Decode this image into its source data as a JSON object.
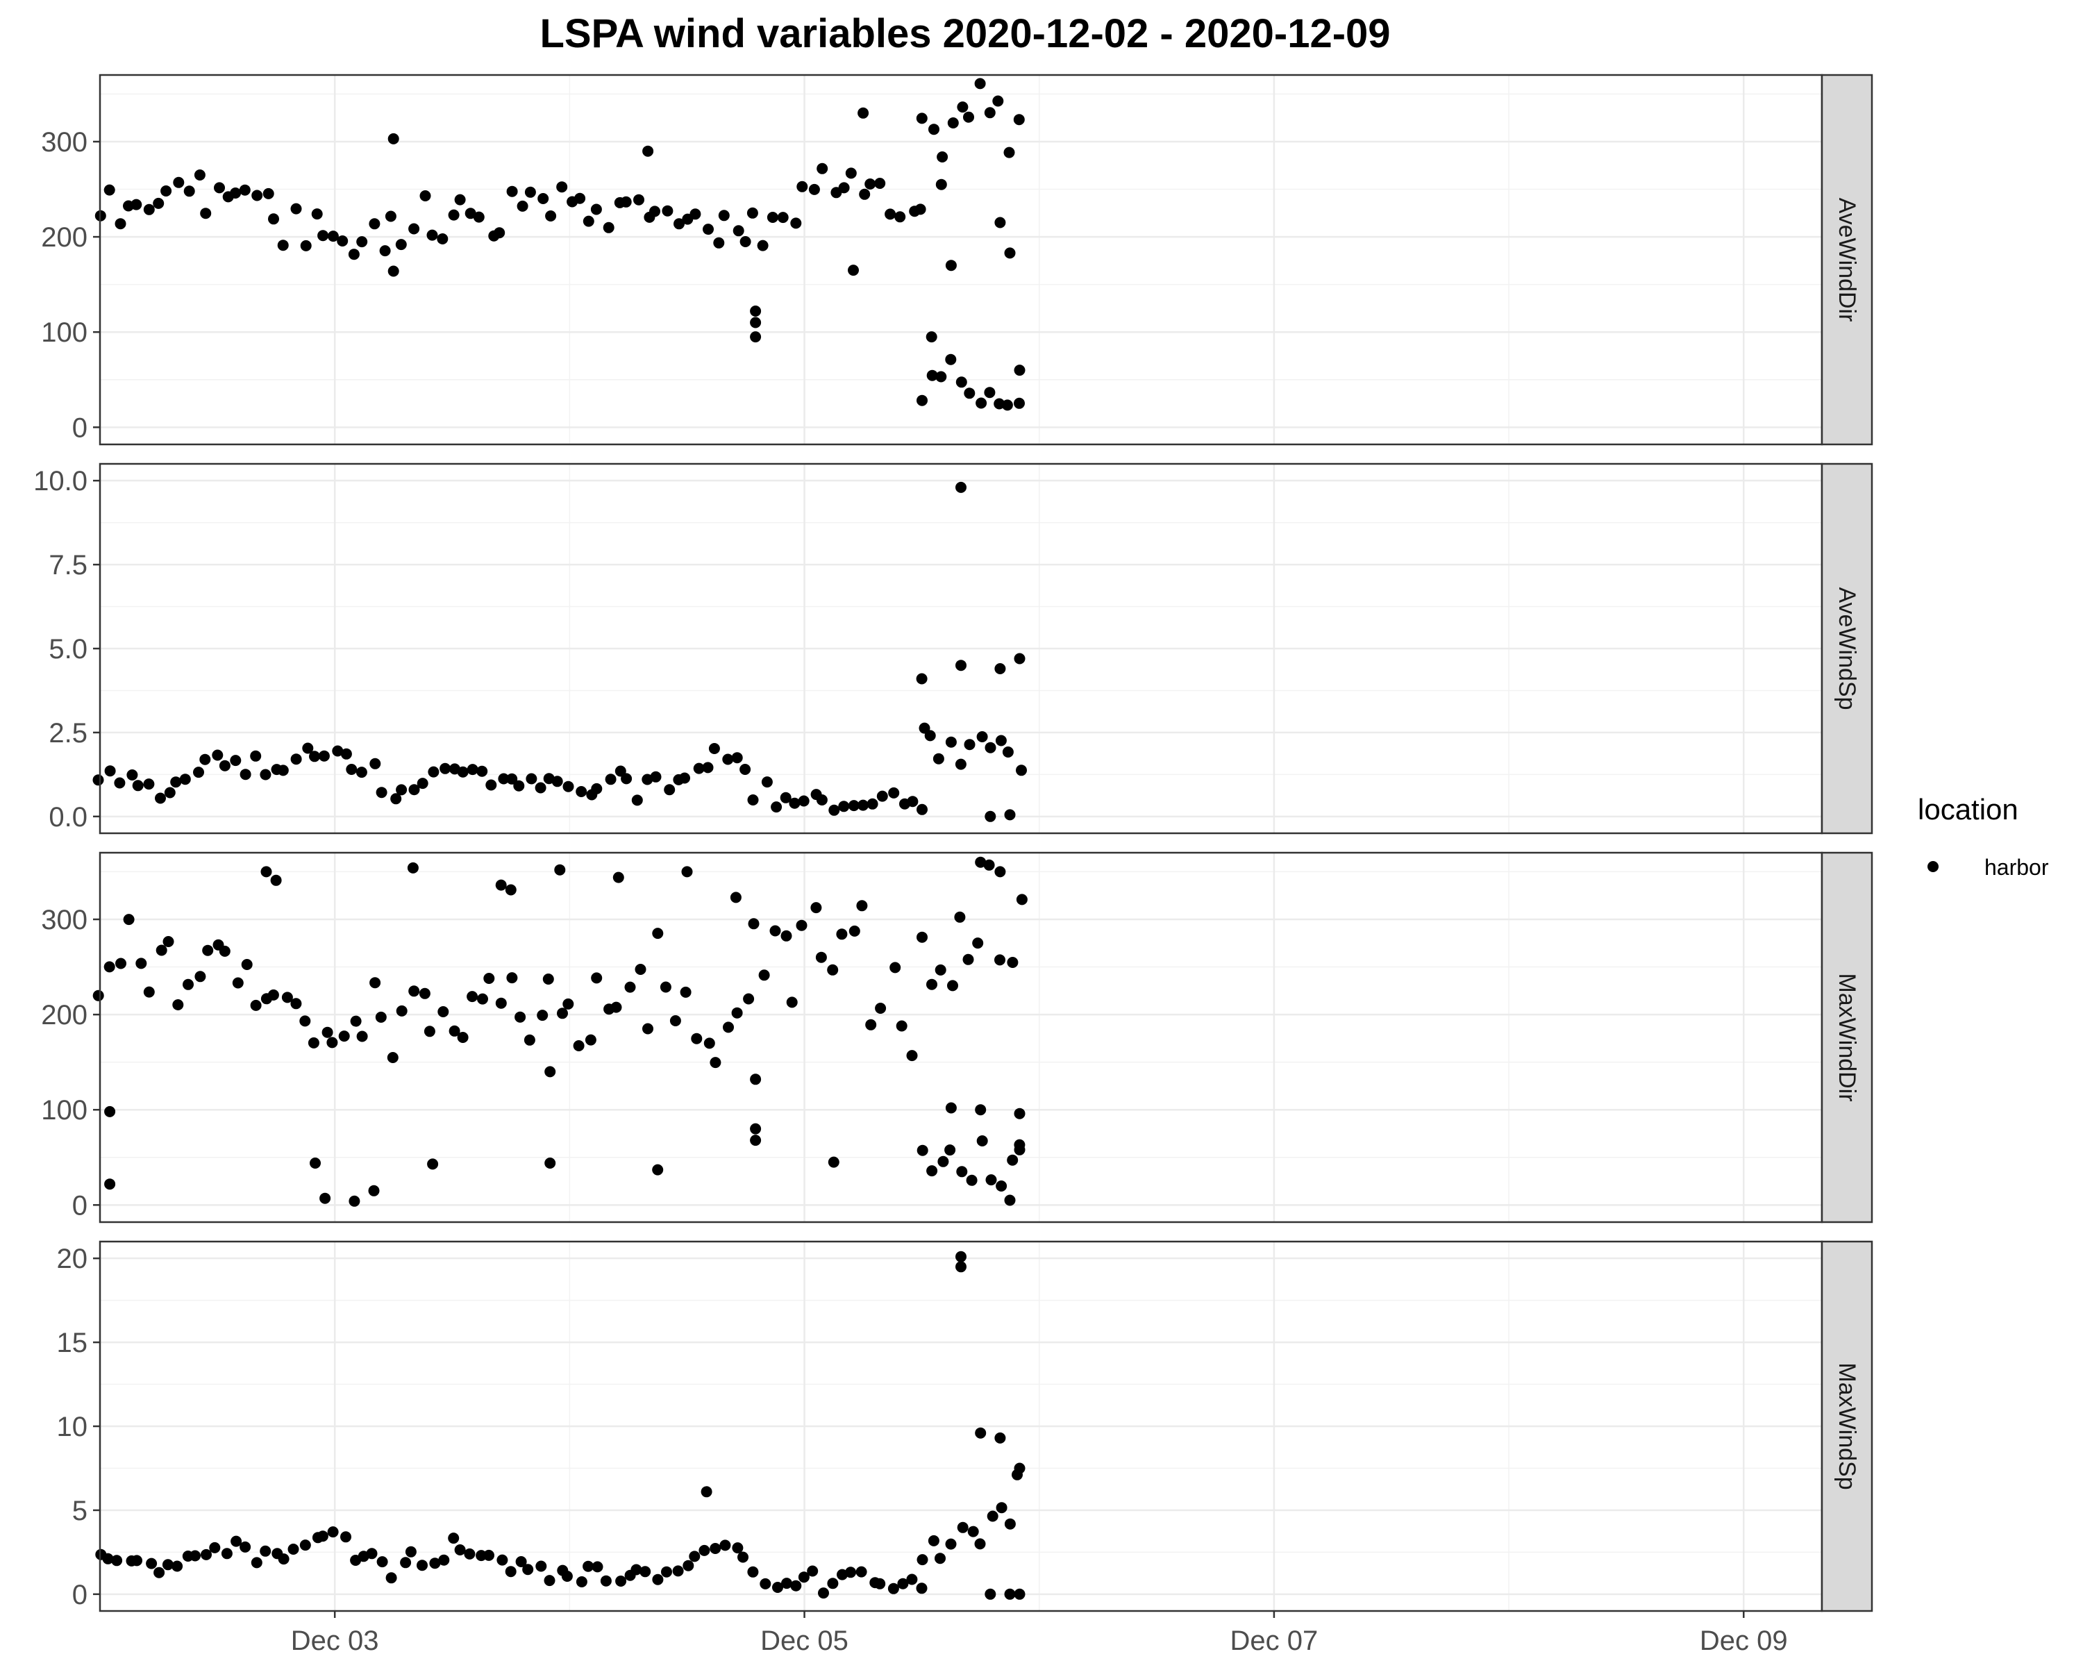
{
  "chart_data": {
    "type": "scatter",
    "title": "LSPA wind variables 2020-12-02 - 2020-12-09",
    "xlabel": "",
    "ylabel": "",
    "x_axis": {
      "type": "date",
      "range": [
        "2020-12-02T00:00",
        "2020-12-09T08:00"
      ],
      "ticks": [
        {
          "date": "2020-12-03",
          "label": "Dec 03"
        },
        {
          "date": "2020-12-05",
          "label": "Dec 05"
        },
        {
          "date": "2020-12-07",
          "label": "Dec 07"
        },
        {
          "date": "2020-12-09",
          "label": "Dec 09"
        }
      ]
    },
    "grid": true,
    "legend": {
      "title": "location",
      "position": "right",
      "entries": [
        {
          "label": "harbor",
          "color": "#000000"
        }
      ]
    },
    "panels": [
      {
        "strip": "AveWindDir",
        "ylim": [
          -18,
          370
        ],
        "yticks": [
          {
            "value": 0,
            "label": "0"
          },
          {
            "value": 100,
            "label": "100"
          },
          {
            "value": 200,
            "label": "200"
          },
          {
            "value": 300,
            "label": "300"
          }
        ],
        "yminor": [
          50,
          150,
          250,
          350
        ],
        "segments": [
          {
            "x": [
              "2020-12-02T00:00",
              "2020-12-02T10:00",
              "2020-12-02T16:00",
              "2020-12-02T20:00",
              "2020-12-03T00:00",
              "2020-12-03T08:00",
              "2020-12-03T16:00",
              "2020-12-04T00:00",
              "2020-12-04T08:00",
              "2020-12-04T14:00",
              "2020-12-04T20:00",
              "2020-12-05T00:00",
              "2020-12-05T08:00",
              "2020-12-05T12:00"
            ],
            "y": [
              230,
              255,
              240,
              210,
              200,
              210,
              225,
              235,
              240,
              210,
              205,
              250,
              260,
              210
            ],
            "noise": 22
          },
          {
            "x": [
              "2020-12-05T12:00",
              "2020-12-05T17:00",
              "2020-12-05T22:00"
            ],
            "y": [
              45,
              45,
              20
            ],
            "noise": 28
          },
          {
            "x": [
              "2020-12-05T12:00",
              "2020-12-05T17:00",
              "2020-12-05T22:00"
            ],
            "y": [
              290,
              335,
              300
            ],
            "noise": 35
          }
        ],
        "points": [
          {
            "x": "2020-12-03T06:00",
            "y": 303
          },
          {
            "x": "2020-12-03T06:00",
            "y": 164
          },
          {
            "x": "2020-12-04T08:00",
            "y": 290
          },
          {
            "x": "2020-12-04T19:00",
            "y": 122
          },
          {
            "x": "2020-12-04T19:00",
            "y": 110
          },
          {
            "x": "2020-12-04T19:00",
            "y": 95
          },
          {
            "x": "2020-12-05T06:00",
            "y": 330
          },
          {
            "x": "2020-12-05T05:00",
            "y": 165
          },
          {
            "x": "2020-12-05T14:00",
            "y": 255
          },
          {
            "x": "2020-12-05T15:00",
            "y": 170
          },
          {
            "x": "2020-12-05T20:00",
            "y": 215
          },
          {
            "x": "2020-12-05T21:00",
            "y": 183
          },
          {
            "x": "2020-12-05T22:00",
            "y": 60
          },
          {
            "x": "2020-12-05T13:00",
            "y": 95
          }
        ]
      },
      {
        "strip": "AveWindSp",
        "ylim": [
          -0.5,
          10.5
        ],
        "yticks": [
          {
            "value": 0,
            "label": "0.0"
          },
          {
            "value": 2.5,
            "label": "2.5"
          },
          {
            "value": 5,
            "label": "5.0"
          },
          {
            "value": 7.5,
            "label": "7.5"
          },
          {
            "value": 10,
            "label": "10.0"
          }
        ],
        "yminor": [
          1.25,
          3.75,
          6.25,
          8.75
        ],
        "segments": [
          {
            "x": [
              "2020-12-02T00:00",
              "2020-12-02T06:00",
              "2020-12-02T12:00",
              "2020-12-02T18:00",
              "2020-12-03T00:00",
              "2020-12-03T06:00",
              "2020-12-03T12:00",
              "2020-12-03T18:00",
              "2020-12-04T00:00",
              "2020-12-04T06:00",
              "2020-12-04T12:00",
              "2020-12-04T16:00",
              "2020-12-04T20:00",
              "2020-12-05T06:00",
              "2020-12-05T12:00"
            ],
            "y": [
              1.2,
              0.8,
              1.6,
              1.4,
              2.0,
              0.7,
              1.4,
              1.0,
              0.8,
              0.9,
              1.2,
              1.9,
              0.5,
              0.5,
              0.5
            ],
            "noise": 0.32
          },
          {
            "x": [
              "2020-12-05T12:00",
              "2020-12-05T18:00",
              "2020-12-05T22:00"
            ],
            "y": [
              2.2,
              2.0,
              1.5
            ],
            "noise": 0.9
          }
        ],
        "points": [
          {
            "x": "2020-12-05T16:00",
            "y": 9.8
          },
          {
            "x": "2020-12-05T22:00",
            "y": 4.7
          },
          {
            "x": "2020-12-05T20:00",
            "y": 4.4
          },
          {
            "x": "2020-12-05T16:00",
            "y": 4.5
          },
          {
            "x": "2020-12-05T12:00",
            "y": 4.1
          },
          {
            "x": "2020-12-05T21:00",
            "y": 0.05
          },
          {
            "x": "2020-12-05T19:00",
            "y": 0.0
          }
        ]
      },
      {
        "strip": "MaxWindDir",
        "ylim": [
          -18,
          370
        ],
        "yticks": [
          {
            "value": 0,
            "label": "0"
          },
          {
            "value": 100,
            "label": "100"
          },
          {
            "value": 200,
            "label": "200"
          },
          {
            "value": 300,
            "label": "300"
          }
        ],
        "yminor": [
          50,
          150,
          250,
          350
        ],
        "segments": [
          {
            "x": [
              "2020-12-02T00:00",
              "2020-12-02T10:00",
              "2020-12-02T18:00",
              "2020-12-03T00:00",
              "2020-12-03T12:00",
              "2020-12-04T00:00",
              "2020-12-04T10:00",
              "2020-12-04T18:00",
              "2020-12-04T20:00",
              "2020-12-05T06:00",
              "2020-12-05T10:00"
            ],
            "y": [
              260,
              250,
              210,
              190,
              210,
              220,
              235,
              200,
              265,
              265,
              190
            ],
            "noise": 45
          },
          {
            "x": [
              "2020-12-05T12:00",
              "2020-12-05T17:00",
              "2020-12-05T22:00"
            ],
            "y": [
              40,
              45,
              35
            ],
            "noise": 25
          },
          {
            "x": [
              "2020-12-05T12:00",
              "2020-12-05T17:00",
              "2020-12-05T22:00"
            ],
            "y": [
              260,
              290,
              300
            ],
            "noise": 55
          }
        ],
        "points": [
          {
            "x": "2020-12-02T01:00",
            "y": 98
          },
          {
            "x": "2020-12-02T01:00",
            "y": 22
          },
          {
            "x": "2020-12-02T17:00",
            "y": 350
          },
          {
            "x": "2020-12-02T18:00",
            "y": 341
          },
          {
            "x": "2020-12-02T22:00",
            "y": 44
          },
          {
            "x": "2020-12-02T23:00",
            "y": 7
          },
          {
            "x": "2020-12-03T02:00",
            "y": 4
          },
          {
            "x": "2020-12-03T04:00",
            "y": 15
          },
          {
            "x": "2020-12-03T08:00",
            "y": 354
          },
          {
            "x": "2020-12-03T10:00",
            "y": 43
          },
          {
            "x": "2020-12-03T17:00",
            "y": 336
          },
          {
            "x": "2020-12-03T18:00",
            "y": 331
          },
          {
            "x": "2020-12-03T22:00",
            "y": 140
          },
          {
            "x": "2020-12-03T22:00",
            "y": 44
          },
          {
            "x": "2020-12-03T23:00",
            "y": 352
          },
          {
            "x": "2020-12-04T05:00",
            "y": 344
          },
          {
            "x": "2020-12-04T09:00",
            "y": 37
          },
          {
            "x": "2020-12-04T12:00",
            "y": 350
          },
          {
            "x": "2020-12-04T17:00",
            "y": 323
          },
          {
            "x": "2020-12-04T19:00",
            "y": 132
          },
          {
            "x": "2020-12-04T19:00",
            "y": 80
          },
          {
            "x": "2020-12-04T19:00",
            "y": 68
          },
          {
            "x": "2020-12-05T03:00",
            "y": 45
          },
          {
            "x": "2020-12-05T11:00",
            "y": 157
          },
          {
            "x": "2020-12-05T15:00",
            "y": 102
          },
          {
            "x": "2020-12-05T18:00",
            "y": 100
          },
          {
            "x": "2020-12-05T18:00",
            "y": 360
          },
          {
            "x": "2020-12-05T20:00",
            "y": 350
          },
          {
            "x": "2020-12-05T21:00",
            "y": 5
          },
          {
            "x": "2020-12-05T22:00",
            "y": 96
          },
          {
            "x": "2020-12-05T22:00",
            "y": 58
          }
        ]
      },
      {
        "strip": "MaxWindSp",
        "ylim": [
          -1,
          21
        ],
        "yticks": [
          {
            "value": 0,
            "label": "0"
          },
          {
            "value": 5,
            "label": "5"
          },
          {
            "value": 10,
            "label": "10"
          },
          {
            "value": 15,
            "label": "15"
          },
          {
            "value": 20,
            "label": "20"
          }
        ],
        "yminor": [
          2.5,
          7.5,
          12.5,
          17.5
        ],
        "segments": [
          {
            "x": [
              "2020-12-02T00:00",
              "2020-12-02T06:00",
              "2020-12-02T12:00",
              "2020-12-02T18:00",
              "2020-12-03T00:00",
              "2020-12-03T06:00",
              "2020-12-03T12:00",
              "2020-12-03T18:00",
              "2020-12-04T00:00",
              "2020-12-04T06:00",
              "2020-12-04T12:00",
              "2020-12-04T16:00",
              "2020-12-04T20:00",
              "2020-12-05T06:00",
              "2020-12-05T12:00"
            ],
            "y": [
              2.0,
              1.5,
              2.8,
              2.4,
              3.5,
              1.2,
              2.6,
              1.8,
              1.1,
              1.2,
              1.6,
              3.6,
              0.7,
              0.8,
              0.8
            ],
            "noise": 0.6
          },
          {
            "x": [
              "2020-12-05T12:00",
              "2020-12-05T18:00",
              "2020-12-05T22:00"
            ],
            "y": [
              3.0,
              4.2,
              6.0
            ],
            "noise": 1.6
          }
        ],
        "points": [
          {
            "x": "2020-12-05T16:00",
            "y": 20.1
          },
          {
            "x": "2020-12-05T16:00",
            "y": 19.5
          },
          {
            "x": "2020-12-05T18:00",
            "y": 9.6
          },
          {
            "x": "2020-12-05T20:00",
            "y": 9.3
          },
          {
            "x": "2020-12-05T22:00",
            "y": 7.5
          },
          {
            "x": "2020-12-04T14:00",
            "y": 6.1
          },
          {
            "x": "2020-12-05T19:00",
            "y": 0.0
          },
          {
            "x": "2020-12-05T21:00",
            "y": 0.0
          },
          {
            "x": "2020-12-05T22:00",
            "y": 0.0
          }
        ]
      }
    ]
  }
}
